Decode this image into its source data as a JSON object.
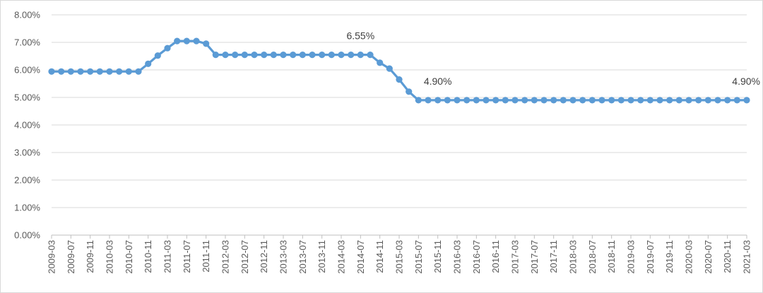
{
  "chart_data": {
    "type": "line",
    "x_tick_labels": [
      "2009-03",
      "2009-07",
      "2009-11",
      "2010-03",
      "2010-07",
      "2010-11",
      "2011-03",
      "2011-07",
      "2011-11",
      "2012-03",
      "2012-07",
      "2012-11",
      "2013-03",
      "2013-07",
      "2013-11",
      "2014-03",
      "2014-07",
      "2014-11",
      "2015-03",
      "2015-07",
      "2015-11",
      "2016-03",
      "2016-07",
      "2016-11",
      "2017-03",
      "2017-07",
      "2017-11",
      "2018-03",
      "2018-07",
      "2018-11",
      "2019-03",
      "2019-07",
      "2019-11",
      "2020-03",
      "2020-07",
      "2020-11",
      "2021-03"
    ],
    "y_tick_labels": [
      "0.00%",
      "1.00%",
      "2.00%",
      "3.00%",
      "4.00%",
      "5.00%",
      "6.00%",
      "7.00%",
      "8.00%"
    ],
    "ylim": [
      0,
      8
    ],
    "grid": true,
    "legend": "none",
    "color": "#5b9bd5",
    "series": [
      {
        "points": [
          [
            "2009-03",
            5.94
          ],
          [
            "2009-05",
            5.94
          ],
          [
            "2009-07",
            5.94
          ],
          [
            "2009-09",
            5.94
          ],
          [
            "2009-11",
            5.94
          ],
          [
            "2010-01",
            5.94
          ],
          [
            "2010-03",
            5.94
          ],
          [
            "2010-05",
            5.94
          ],
          [
            "2010-07",
            5.94
          ],
          [
            "2010-09",
            5.94
          ],
          [
            "2010-11",
            6.22
          ],
          [
            "2011-01",
            6.52
          ],
          [
            "2011-03",
            6.79
          ],
          [
            "2011-05",
            7.05
          ],
          [
            "2011-07",
            7.05
          ],
          [
            "2011-09",
            7.05
          ],
          [
            "2011-11",
            6.95
          ],
          [
            "2012-01",
            6.55
          ],
          [
            "2012-03",
            6.55
          ],
          [
            "2012-05",
            6.55
          ],
          [
            "2012-07",
            6.55
          ],
          [
            "2012-09",
            6.55
          ],
          [
            "2012-11",
            6.55
          ],
          [
            "2013-01",
            6.55
          ],
          [
            "2013-03",
            6.55
          ],
          [
            "2013-05",
            6.55
          ],
          [
            "2013-07",
            6.55
          ],
          [
            "2013-09",
            6.55
          ],
          [
            "2013-11",
            6.55
          ],
          [
            "2014-01",
            6.55
          ],
          [
            "2014-03",
            6.55
          ],
          [
            "2014-05",
            6.55
          ],
          [
            "2014-07",
            6.55
          ],
          [
            "2014-09",
            6.55
          ],
          [
            "2014-11",
            6.26
          ],
          [
            "2015-01",
            6.05
          ],
          [
            "2015-03",
            5.65
          ],
          [
            "2015-05",
            5.21
          ],
          [
            "2015-07",
            4.9
          ],
          [
            "2015-09",
            4.9
          ],
          [
            "2015-11",
            4.9
          ],
          [
            "2016-01",
            4.9
          ],
          [
            "2016-03",
            4.9
          ],
          [
            "2016-05",
            4.9
          ],
          [
            "2016-07",
            4.9
          ],
          [
            "2016-09",
            4.9
          ],
          [
            "2016-11",
            4.9
          ],
          [
            "2017-01",
            4.9
          ],
          [
            "2017-03",
            4.9
          ],
          [
            "2017-05",
            4.9
          ],
          [
            "2017-07",
            4.9
          ],
          [
            "2017-09",
            4.9
          ],
          [
            "2017-11",
            4.9
          ],
          [
            "2018-01",
            4.9
          ],
          [
            "2018-03",
            4.9
          ],
          [
            "2018-05",
            4.9
          ],
          [
            "2018-07",
            4.9
          ],
          [
            "2018-09",
            4.9
          ],
          [
            "2018-11",
            4.9
          ],
          [
            "2019-01",
            4.9
          ],
          [
            "2019-03",
            4.9
          ],
          [
            "2019-05",
            4.9
          ],
          [
            "2019-07",
            4.9
          ],
          [
            "2019-09",
            4.9
          ],
          [
            "2019-11",
            4.9
          ],
          [
            "2020-01",
            4.9
          ],
          [
            "2020-03",
            4.9
          ],
          [
            "2020-05",
            4.9
          ],
          [
            "2020-07",
            4.9
          ],
          [
            "2020-09",
            4.9
          ],
          [
            "2020-11",
            4.9
          ],
          [
            "2021-01",
            4.9
          ],
          [
            "2021-03",
            4.9
          ]
        ]
      }
    ],
    "annotations": [
      {
        "x": "2014-07",
        "y": 6.55,
        "text": "6.55%"
      },
      {
        "x": "2015-11",
        "y": 4.9,
        "text": "4.90%"
      },
      {
        "x": "2021-03",
        "y": 4.9,
        "text": "4.90%"
      }
    ]
  }
}
